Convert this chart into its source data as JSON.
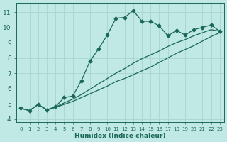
{
  "xlabel": "Humidex (Indice chaleur)",
  "ylabel": "",
  "background_color": "#c0e8e4",
  "grid_color": "#a8d4d0",
  "line_color": "#1a6858",
  "xlim": [
    -0.5,
    23.5
  ],
  "ylim": [
    3.8,
    11.6
  ],
  "x_ticks": [
    0,
    1,
    2,
    3,
    4,
    5,
    6,
    7,
    8,
    9,
    10,
    11,
    12,
    13,
    14,
    15,
    16,
    17,
    18,
    19,
    20,
    21,
    22,
    23
  ],
  "y_ticks": [
    4,
    5,
    6,
    7,
    8,
    9,
    10,
    11
  ],
  "line1_x": [
    0,
    1,
    2,
    3,
    4,
    5,
    6,
    7,
    8,
    9,
    10,
    11,
    12,
    13,
    14,
    15,
    16,
    17,
    18,
    19,
    20,
    21,
    22,
    23
  ],
  "line1_y": [
    4.7,
    4.55,
    4.95,
    4.6,
    4.8,
    5.4,
    5.5,
    6.5,
    7.8,
    8.6,
    9.5,
    10.6,
    10.65,
    11.1,
    10.4,
    10.4,
    10.1,
    9.45,
    9.8,
    9.5,
    9.85,
    10.0,
    10.15,
    9.75
  ],
  "line2_x": [
    0,
    1,
    2,
    3,
    4,
    5,
    6,
    7,
    8,
    9,
    10,
    11,
    12,
    13,
    14,
    15,
    16,
    17,
    18,
    19,
    20,
    21,
    22,
    23
  ],
  "line2_y": [
    4.7,
    4.55,
    4.95,
    4.6,
    4.75,
    4.95,
    5.15,
    5.4,
    5.65,
    5.9,
    6.15,
    6.45,
    6.65,
    6.9,
    7.15,
    7.4,
    7.7,
    8.0,
    8.3,
    8.55,
    8.8,
    9.1,
    9.4,
    9.65
  ],
  "line3_x": [
    0,
    1,
    2,
    3,
    4,
    5,
    6,
    7,
    8,
    9,
    10,
    11,
    12,
    13,
    14,
    15,
    16,
    17,
    18,
    19,
    20,
    21,
    22,
    23
  ],
  "line3_y": [
    4.7,
    4.55,
    4.95,
    4.6,
    4.78,
    5.05,
    5.3,
    5.6,
    5.95,
    6.3,
    6.65,
    7.0,
    7.3,
    7.65,
    7.95,
    8.2,
    8.45,
    8.75,
    9.0,
    9.2,
    9.45,
    9.65,
    9.85,
    9.75
  ]
}
